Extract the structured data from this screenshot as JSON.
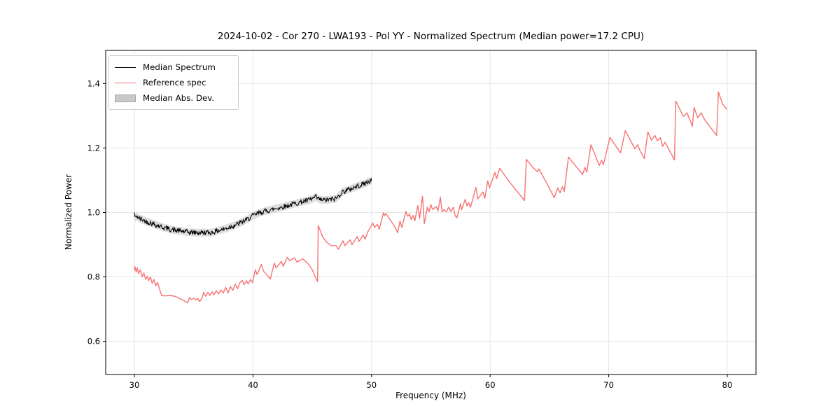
{
  "figure": {
    "title": "2024-10-02 - Cor 270 - LWA193 - Pol YY - Normalized Spectrum (Median power=17.2 CPU)",
    "xlabel": "Frequency (MHz)",
    "ylabel": "Normalized Power"
  },
  "legend": {
    "items": [
      {
        "label": "Median Spectrum",
        "type": "line",
        "color": "#000000"
      },
      {
        "label": "Reference spec",
        "type": "line",
        "color": "#f87272"
      },
      {
        "label": "Median Abs. Dev.",
        "type": "patch",
        "color": "#c9c9c9",
        "edge_color": "#a6a6a6"
      }
    ]
  },
  "chart_data": {
    "type": "line",
    "title": "2024-10-02 - Cor 270 - LWA193 - Pol YY - Normalized Spectrum (Median power=17.2 CPU)",
    "xlabel": "Frequency (MHz)",
    "ylabel": "Normalized Power",
    "xlim": [
      27.58,
      82.42
    ],
    "ylim": [
      0.497,
      1.503
    ],
    "xticks": [
      30,
      40,
      50,
      60,
      70,
      80
    ],
    "xtick_labels": [
      "30",
      "40",
      "50",
      "60",
      "70",
      "80"
    ],
    "yticks": [
      0.6,
      0.8,
      1.0,
      1.2,
      1.4
    ],
    "ytick_labels": [
      "0.6",
      "0.8",
      "1.0",
      "1.2",
      "1.4"
    ],
    "grid": true,
    "grid_color": "#e6e6e6",
    "legend_position": "upper left",
    "series": [
      {
        "name": "Median Spectrum",
        "color": "#000000",
        "line_width": 1.1,
        "noise_amplitude": 0.008,
        "noise_step": 0.05,
        "seed": 42,
        "points": [
          [
            30,
            0.998
          ],
          [
            30.08,
            0.982
          ],
          [
            30.2,
            0.99
          ],
          [
            30.35,
            0.982
          ],
          [
            30.6,
            0.979
          ],
          [
            31,
            0.972
          ],
          [
            31.5,
            0.966
          ],
          [
            32,
            0.959
          ],
          [
            32.5,
            0.953
          ],
          [
            33,
            0.948
          ],
          [
            33.5,
            0.944
          ],
          [
            34,
            0.942
          ],
          [
            34.5,
            0.939
          ],
          [
            35,
            0.938
          ],
          [
            35.5,
            0.937
          ],
          [
            36,
            0.938
          ],
          [
            36.4,
            0.937
          ],
          [
            36.8,
            0.941
          ],
          [
            37.2,
            0.945
          ],
          [
            37.6,
            0.949
          ],
          [
            38,
            0.954
          ],
          [
            38.5,
            0.961
          ],
          [
            39,
            0.969
          ],
          [
            39.5,
            0.978
          ],
          [
            40,
            0.99
          ],
          [
            40.5,
            0.998
          ],
          [
            41,
            1.004
          ],
          [
            41.5,
            1.008
          ],
          [
            42,
            1.013
          ],
          [
            42.5,
            1.017
          ],
          [
            43,
            1.022
          ],
          [
            43.5,
            1.027
          ],
          [
            44,
            1.032
          ],
          [
            44.5,
            1.036
          ],
          [
            45,
            1.042
          ],
          [
            45.3,
            1.048
          ],
          [
            45.6,
            1.04
          ],
          [
            46,
            1.038
          ],
          [
            46.5,
            1.04
          ],
          [
            47,
            1.043
          ],
          [
            47.25,
            1.052
          ],
          [
            47.5,
            1.063
          ],
          [
            48,
            1.07
          ],
          [
            48.5,
            1.077
          ],
          [
            49,
            1.084
          ],
          [
            49.5,
            1.091
          ],
          [
            50,
            1.1
          ]
        ]
      },
      {
        "name": "Reference spec",
        "color": "#f87272",
        "line_width": 1.4,
        "points": [
          [
            30,
            0.82
          ],
          [
            30.05,
            0.832
          ],
          [
            30.15,
            0.815
          ],
          [
            30.25,
            0.828
          ],
          [
            30.35,
            0.81
          ],
          [
            30.5,
            0.822
          ],
          [
            30.65,
            0.8
          ],
          [
            30.8,
            0.812
          ],
          [
            30.95,
            0.792
          ],
          [
            31.1,
            0.802
          ],
          [
            31.2,
            0.788
          ],
          [
            31.35,
            0.8
          ],
          [
            31.5,
            0.78
          ],
          [
            31.65,
            0.792
          ],
          [
            31.8,
            0.772
          ],
          [
            31.95,
            0.783
          ],
          [
            32.1,
            0.764
          ],
          [
            32.3,
            0.742
          ],
          [
            32.6,
            0.741
          ],
          [
            33,
            0.742
          ],
          [
            33.4,
            0.74
          ],
          [
            33.6,
            0.737
          ],
          [
            33.9,
            0.731
          ],
          [
            34.2,
            0.726
          ],
          [
            34.5,
            0.719
          ],
          [
            34.65,
            0.736
          ],
          [
            34.8,
            0.729
          ],
          [
            35,
            0.734
          ],
          [
            35.2,
            0.728
          ],
          [
            35.35,
            0.733
          ],
          [
            35.5,
            0.723
          ],
          [
            35.7,
            0.735
          ],
          [
            35.85,
            0.752
          ],
          [
            36,
            0.74
          ],
          [
            36.2,
            0.752
          ],
          [
            36.35,
            0.742
          ],
          [
            36.55,
            0.754
          ],
          [
            36.7,
            0.744
          ],
          [
            36.9,
            0.757
          ],
          [
            37.1,
            0.747
          ],
          [
            37.3,
            0.76
          ],
          [
            37.5,
            0.75
          ],
          [
            37.7,
            0.767
          ],
          [
            37.9,
            0.75
          ],
          [
            38.1,
            0.77
          ],
          [
            38.3,
            0.758
          ],
          [
            38.5,
            0.778
          ],
          [
            38.7,
            0.763
          ],
          [
            38.9,
            0.783
          ],
          [
            39.1,
            0.789
          ],
          [
            39.25,
            0.776
          ],
          [
            39.45,
            0.788
          ],
          [
            39.6,
            0.778
          ],
          [
            39.8,
            0.792
          ],
          [
            39.95,
            0.782
          ],
          [
            40.2,
            0.822
          ],
          [
            40.35,
            0.807
          ],
          [
            40.7,
            0.839
          ],
          [
            40.9,
            0.818
          ],
          [
            41.3,
            0.8
          ],
          [
            41.45,
            0.793
          ],
          [
            41.8,
            0.843
          ],
          [
            41.95,
            0.828
          ],
          [
            42.4,
            0.848
          ],
          [
            42.55,
            0.833
          ],
          [
            42.9,
            0.861
          ],
          [
            43.1,
            0.85
          ],
          [
            43.5,
            0.859
          ],
          [
            43.7,
            0.846
          ],
          [
            44.2,
            0.856
          ],
          [
            44.6,
            0.843
          ],
          [
            45,
            0.822
          ],
          [
            45.25,
            0.8
          ],
          [
            45.45,
            0.785
          ],
          [
            45.5,
            0.96
          ],
          [
            45.7,
            0.94
          ],
          [
            45.9,
            0.923
          ],
          [
            46.2,
            0.908
          ],
          [
            46.6,
            0.897
          ],
          [
            47,
            0.897
          ],
          [
            47.2,
            0.886
          ],
          [
            47.6,
            0.912
          ],
          [
            47.75,
            0.897
          ],
          [
            48.2,
            0.915
          ],
          [
            48.35,
            0.9
          ],
          [
            48.8,
            0.925
          ],
          [
            48.95,
            0.91
          ],
          [
            49.3,
            0.93
          ],
          [
            49.45,
            0.917
          ],
          [
            49.7,
            0.941
          ],
          [
            50.1,
            0.967
          ],
          [
            50.25,
            0.954
          ],
          [
            50.5,
            0.963
          ],
          [
            50.65,
            0.948
          ],
          [
            51,
            0.999
          ],
          [
            51.1,
            0.99
          ],
          [
            51.2,
            0.997
          ],
          [
            51.9,
            0.959
          ],
          [
            52.2,
            0.937
          ],
          [
            52.4,
            0.973
          ],
          [
            52.55,
            0.953
          ],
          [
            52.9,
            1.003
          ],
          [
            53.05,
            0.988
          ],
          [
            53.2,
            0.995
          ],
          [
            53.35,
            0.978
          ],
          [
            53.5,
            0.991
          ],
          [
            53.65,
            0.974
          ],
          [
            53.9,
            1.022
          ],
          [
            54.05,
            0.981
          ],
          [
            54.3,
            1.05
          ],
          [
            54.45,
            0.965
          ],
          [
            54.7,
            1.016
          ],
          [
            54.85,
            1.002
          ],
          [
            55,
            1.024
          ],
          [
            55.15,
            1.009
          ],
          [
            55.45,
            1.018
          ],
          [
            55.6,
            1.005
          ],
          [
            55.8,
            1.048
          ],
          [
            55.95,
            1.002
          ],
          [
            56.1,
            1.009
          ],
          [
            56.3,
            1.002
          ],
          [
            56.5,
            1.016
          ],
          [
            56.7,
            1.003
          ],
          [
            56.9,
            1.016
          ],
          [
            57.05,
            0.99
          ],
          [
            57.2,
            0.983
          ],
          [
            57.5,
            1.027
          ],
          [
            57.6,
            1.008
          ],
          [
            57.9,
            1.041
          ],
          [
            58.05,
            1.02
          ],
          [
            58.2,
            1.03
          ],
          [
            58.35,
            1.016
          ],
          [
            58.8,
            1.078
          ],
          [
            58.95,
            1.042
          ],
          [
            59.4,
            1.063
          ],
          [
            59.55,
            1.044
          ],
          [
            59.8,
            1.098
          ],
          [
            59.95,
            1.077
          ],
          [
            60.4,
            1.124
          ],
          [
            60.55,
            1.105
          ],
          [
            60.8,
            1.137
          ],
          [
            61.6,
            1.096
          ],
          [
            62.9,
            1.037
          ],
          [
            63.05,
            1.165
          ],
          [
            63.6,
            1.14
          ],
          [
            64,
            1.126
          ],
          [
            64.1,
            1.135
          ],
          [
            64.7,
            1.096
          ],
          [
            65.4,
            1.046
          ],
          [
            65.7,
            1.076
          ],
          [
            65.9,
            1.061
          ],
          [
            66.1,
            1.08
          ],
          [
            66.25,
            1.065
          ],
          [
            66.6,
            1.172
          ],
          [
            67.8,
            1.118
          ],
          [
            68,
            1.14
          ],
          [
            68.15,
            1.125
          ],
          [
            68.5,
            1.21
          ],
          [
            69.2,
            1.146
          ],
          [
            69.4,
            1.162
          ],
          [
            69.55,
            1.148
          ],
          [
            70.1,
            1.233
          ],
          [
            71,
            1.185
          ],
          [
            71.4,
            1.254
          ],
          [
            72.2,
            1.198
          ],
          [
            72.45,
            1.21
          ],
          [
            72.6,
            1.195
          ],
          [
            73,
            1.167
          ],
          [
            73.3,
            1.25
          ],
          [
            73.6,
            1.224
          ],
          [
            73.9,
            1.239
          ],
          [
            74.1,
            1.222
          ],
          [
            74.35,
            1.232
          ],
          [
            74.55,
            1.205
          ],
          [
            74.75,
            1.218
          ],
          [
            75.55,
            1.163
          ],
          [
            75.65,
            1.346
          ],
          [
            76,
            1.32
          ],
          [
            76.3,
            1.298
          ],
          [
            76.6,
            1.309
          ],
          [
            76.9,
            1.283
          ],
          [
            77.05,
            1.267
          ],
          [
            77.2,
            1.326
          ],
          [
            77.5,
            1.294
          ],
          [
            77.8,
            1.309
          ],
          [
            78.1,
            1.287
          ],
          [
            79.1,
            1.239
          ],
          [
            79.25,
            1.374
          ],
          [
            79.6,
            1.337
          ],
          [
            79.95,
            1.32
          ]
        ]
      },
      {
        "name": "Median Abs. Dev.",
        "type": "band",
        "around": "Median Spectrum",
        "half_width": 0.012,
        "color": "#c8c8c8",
        "opacity": 0.6
      }
    ]
  }
}
